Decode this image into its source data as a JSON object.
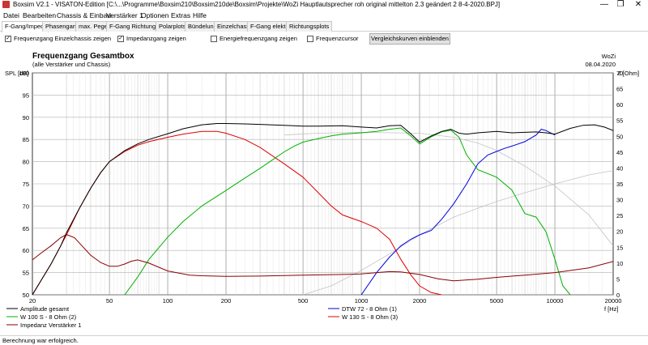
{
  "window": {
    "title": "Boxsim V2.1 - VISATON-Edition [C:\\...\\Programme\\Boxsim210\\Boxsim210de\\Boxsim\\Projekte\\WoZi Hauptlautsprecher roh original mittelton 2.3 geändert 2 8-4-2020.BPJ]",
    "min": "—",
    "max": "❐",
    "close": "✕"
  },
  "menu": [
    "Datei",
    "Bearbeiten",
    "Chassis & Einbau",
    "Verstärker 1",
    "Optionen",
    "Extras",
    "Hilfe"
  ],
  "tabs": [
    "F-Gang/Imped.",
    "Phasengang",
    "max. Pegel",
    "F-Gang Richtungen",
    "Polarplots",
    "Bündelung",
    "Einzelchassis",
    "F-Gang elektr.",
    "Richtungsplots"
  ],
  "options": {
    "einzel_label": "Frequenzgang Einzelchassis zeigen",
    "einzel_checked": "✓",
    "imped_label": "Impedanzgang zeigen",
    "imped_checked": "✓",
    "energie_label": "Energiefrequenzgang zeigen",
    "cursor_label": "Frequenzcursor",
    "compare_button": "Vergleichskurven einblenden"
  },
  "status": "Berechnung war erfolgreich.",
  "chart_data": {
    "type": "line",
    "title": "Frequenzgang Gesamtbox",
    "subtitle": "(alle Verstärker und Chassis)",
    "author": "WoZi",
    "date": "08.04.2020",
    "ylabel_left": "SPL [dB]",
    "ylabel_right": "Z [Ohm]",
    "xlabel": "f [Hz]",
    "x_scale": "log",
    "xlim": [
      20,
      20000
    ],
    "ylim_left": [
      50,
      100
    ],
    "ylim_right": [
      0,
      70
    ],
    "grid": true,
    "x_ticks": [
      20,
      50,
      100,
      200,
      500,
      1000,
      2000,
      5000,
      10000,
      20000
    ],
    "x_tick_labels": [
      "20",
      "50",
      "100",
      "200",
      "500",
      "1000",
      "2000",
      "5000",
      "10000",
      "20000"
    ],
    "y_ticks_left": [
      50,
      55,
      60,
      65,
      70,
      75,
      80,
      85,
      90,
      95,
      100
    ],
    "y_ticks_right": [
      0,
      5,
      10,
      15,
      20,
      25,
      30,
      35,
      40,
      45,
      50,
      55,
      60,
      65,
      70
    ],
    "series": [
      {
        "name": "Amplitude gesamt",
        "color": "#000000",
        "axis": "left",
        "x": [
          20,
          22,
          25,
          28,
          30,
          35,
          40,
          45,
          50,
          60,
          70,
          80,
          100,
          120,
          150,
          180,
          200,
          250,
          300,
          400,
          500,
          600,
          800,
          1000,
          1200,
          1400,
          1600,
          1800,
          2000,
          2300,
          2600,
          2900,
          3200,
          3500,
          4000,
          5000,
          6000,
          7000,
          8000,
          9000,
          10000,
          12000,
          14000,
          16000,
          18000,
          20000
        ],
        "y": [
          50,
          53,
          57,
          61,
          64,
          69.5,
          74,
          77.5,
          80,
          82.5,
          84,
          85,
          86.3,
          87.4,
          88.3,
          88.6,
          88.6,
          88.5,
          88.4,
          88.2,
          88,
          88,
          88.1,
          87.8,
          87.6,
          88.1,
          88.2,
          86.3,
          84.4,
          85.8,
          86.8,
          87.3,
          86.4,
          86.2,
          86.5,
          86.8,
          86.5,
          86.6,
          86.7,
          86.5,
          86.2,
          87.5,
          88.2,
          88.3,
          87.8,
          87.0
        ]
      },
      {
        "name": "W 100 S - 8 Ohm (2)",
        "color": "#00b000",
        "axis": "left",
        "x": [
          60,
          70,
          80,
          100,
          120,
          150,
          200,
          250,
          300,
          350,
          400,
          450,
          500,
          600,
          700,
          800,
          1000,
          1200,
          1400,
          1600,
          1800,
          2000,
          2300,
          2600,
          2900,
          3200,
          3500,
          4000,
          5000,
          6000,
          7000,
          8000,
          9000,
          10000,
          11000,
          12000
        ],
        "y": [
          50,
          54,
          58,
          63,
          66.5,
          70,
          73.5,
          76.3,
          78.5,
          80.5,
          82.2,
          83.5,
          84.4,
          85.2,
          85.8,
          86.2,
          86.5,
          86.8,
          87.3,
          87.6,
          85.8,
          84.0,
          85.6,
          86.7,
          87.1,
          85.5,
          81.5,
          78.2,
          76.5,
          73.6,
          68.3,
          67.5,
          64.2,
          58.0,
          52.0,
          50
        ]
      },
      {
        "name": "Impedanz Verstärker 1",
        "color": "#8b0000",
        "axis": "right",
        "x": [
          20,
          22,
          25,
          28,
          30,
          33,
          36,
          40,
          45,
          50,
          55,
          60,
          65,
          70,
          80,
          100,
          130,
          150,
          200,
          300,
          500,
          800,
          1000,
          1200,
          1400,
          1600,
          2000,
          2500,
          3000,
          4000,
          5000,
          7000,
          10000,
          15000,
          20000
        ],
        "y": [
          11,
          13,
          15.5,
          18,
          19,
          18,
          15.5,
          12.5,
          10.2,
          9.0,
          9.0,
          9.7,
          10.6,
          11.0,
          10,
          7.5,
          6.2,
          6.0,
          5.8,
          5.9,
          6.2,
          6.4,
          6.6,
          7.0,
          7.3,
          7.2,
          6.4,
          5.0,
          4.4,
          4.9,
          5.5,
          6.2,
          7.0,
          8.5,
          10.5
        ]
      },
      {
        "name": "DTW 72 - 8 Ohm (1)",
        "color": "#0000e0",
        "axis": "left",
        "x": [
          1000,
          1200,
          1400,
          1600,
          1800,
          2000,
          2300,
          2600,
          3000,
          3500,
          4000,
          4500,
          5000,
          5500,
          6000,
          7000,
          8000,
          8500,
          9000,
          10000
        ],
        "y": [
          50,
          55,
          58.5,
          61,
          62.5,
          63.5,
          64.5,
          67,
          70.5,
          75,
          79.5,
          81.5,
          82.3,
          83,
          83.5,
          84.5,
          86,
          87.3,
          87.0,
          86.0
        ]
      },
      {
        "name": "W 130 S - 8 Ohm (3)",
        "color": "#e00000",
        "axis": "left",
        "x": [
          20,
          25,
          30,
          35,
          40,
          45,
          50,
          60,
          70,
          80,
          100,
          120,
          150,
          180,
          200,
          250,
          300,
          400,
          500,
          600,
          700,
          800,
          1000,
          1200,
          1400,
          1600,
          1800,
          2000,
          2300,
          2600
        ],
        "y": [
          50,
          57,
          63.5,
          69.5,
          74,
          77.5,
          80,
          82.3,
          83.7,
          84.5,
          85.5,
          86.2,
          86.8,
          86.8,
          86.4,
          85,
          83.2,
          79.5,
          76.5,
          73,
          70,
          68,
          66.5,
          65,
          62.5,
          58,
          54.5,
          52,
          50.5,
          50
        ]
      }
    ],
    "reference_curves_gray": [
      {
        "x": [
          500,
          700,
          1000,
          1500,
          2000,
          3000,
          4000,
          5000,
          7000,
          10000,
          15000,
          20000
        ],
        "y": [
          50,
          52,
          55.5,
          60,
          63.5,
          67.5,
          69.5,
          71,
          73,
          75,
          77,
          78
        ]
      },
      {
        "x": [
          400,
          600,
          1000,
          2000,
          3000,
          4000,
          5000,
          7000,
          10000,
          15000,
          20000
        ],
        "y": [
          86,
          86.4,
          86.6,
          86.4,
          85.5,
          84.2,
          82.5,
          79,
          74.5,
          68,
          61
        ]
      }
    ],
    "legend": [
      "Amplitude gesamt",
      "W 100 S - 8 Ohm (2)",
      "Impedanz Verstärker 1",
      "DTW 72 - 8 Ohm (1)",
      "W 130 S - 8 Ohm (3)"
    ],
    "legend_colors": [
      "#000000",
      "#00b000",
      "#8b0000",
      "#0000e0",
      "#e00000"
    ]
  }
}
